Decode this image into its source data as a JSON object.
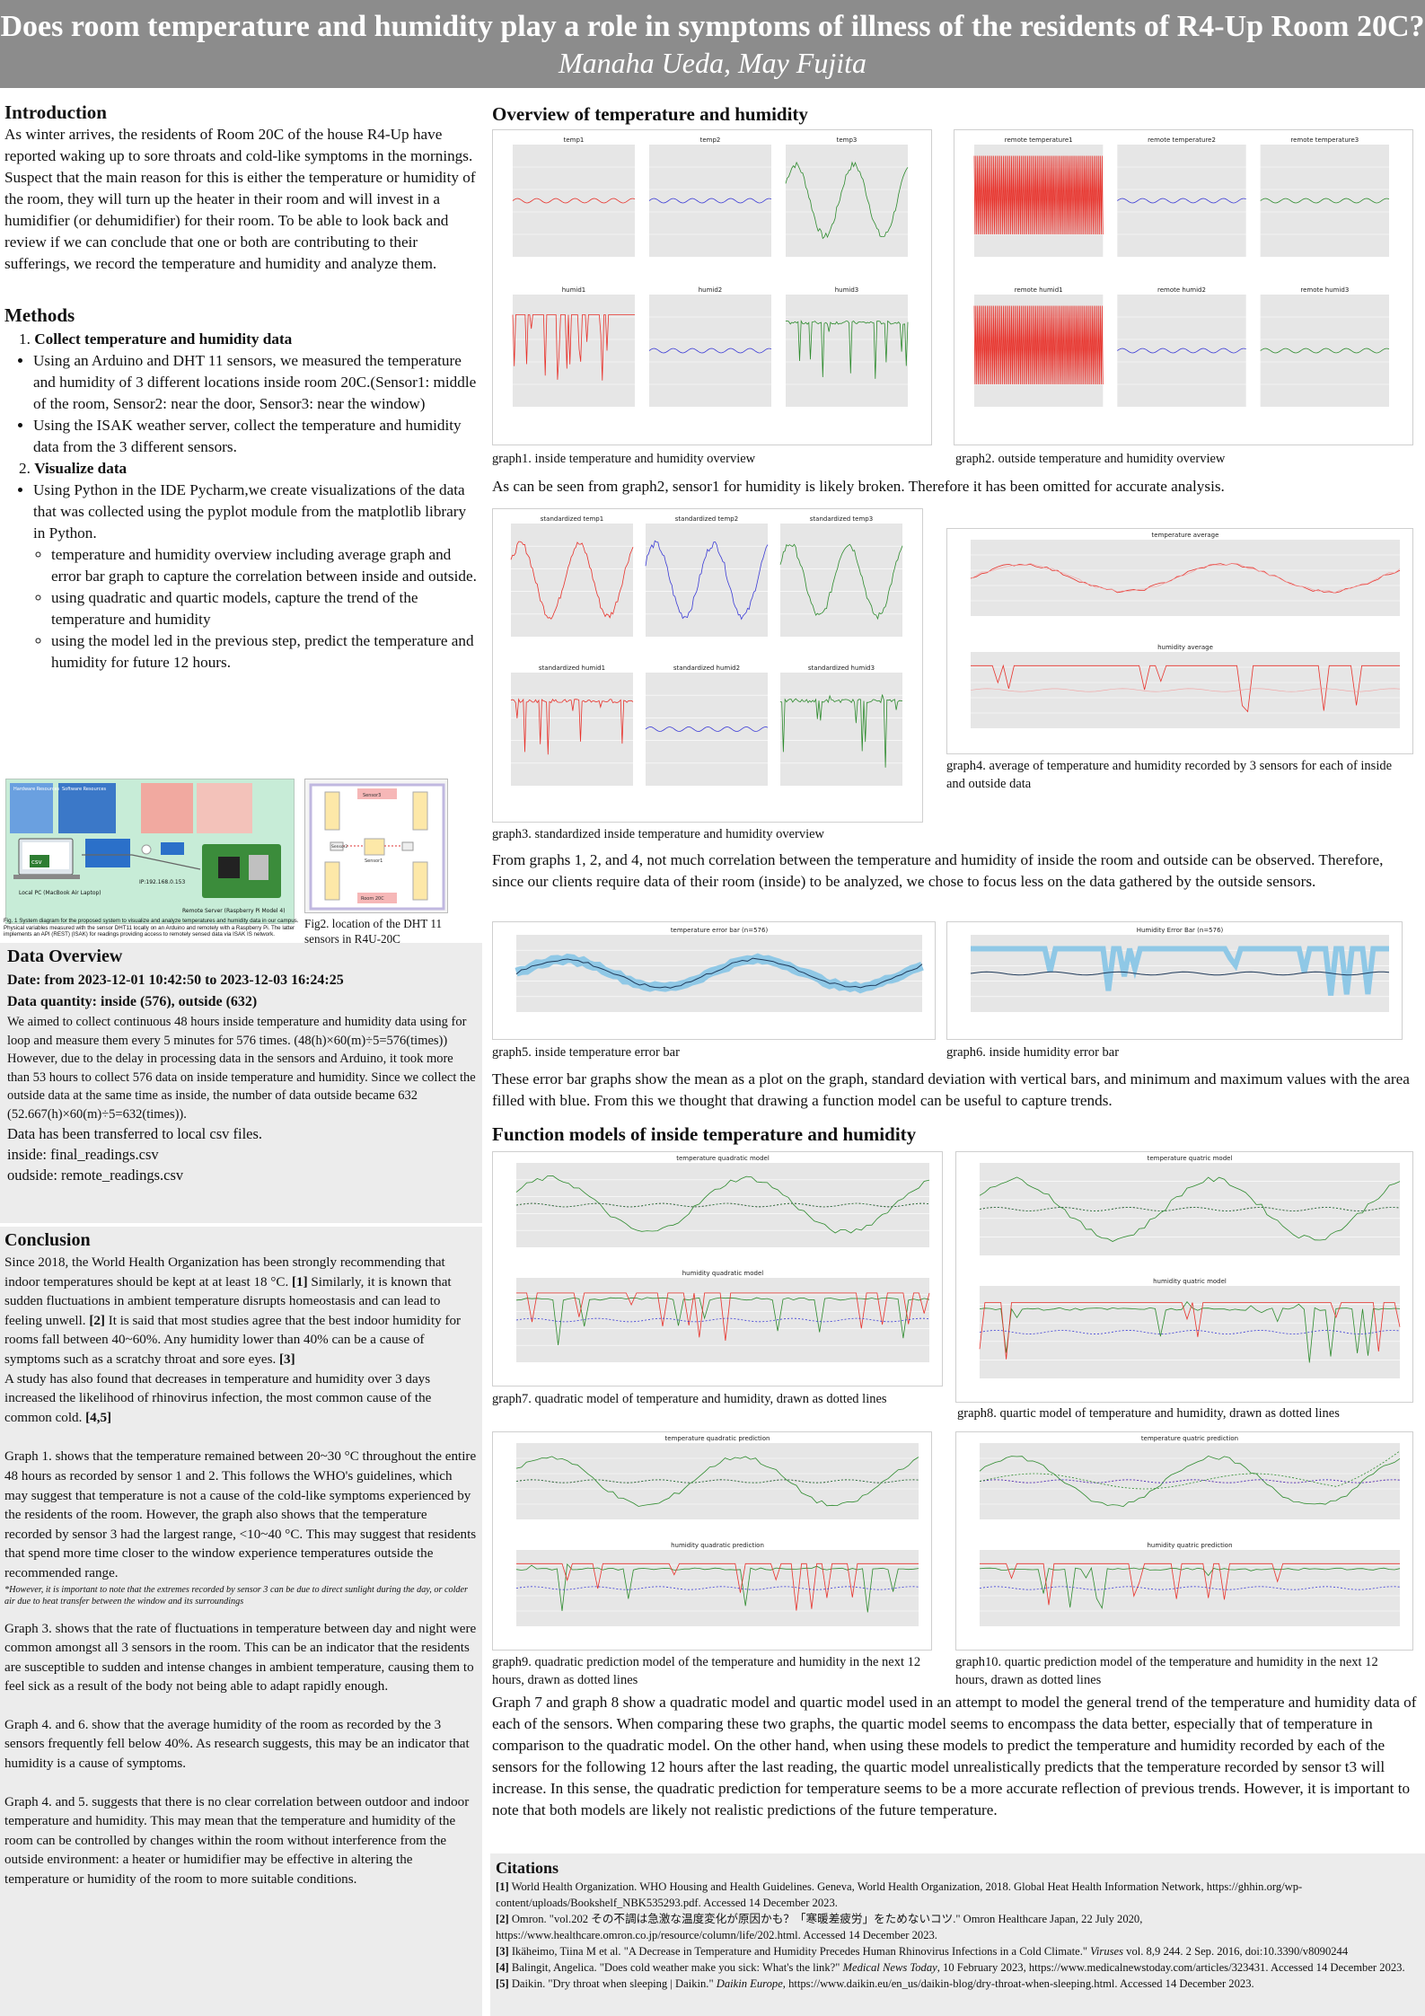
{
  "header": {
    "title": "Does room temperature and humidity play a role in symptoms of illness of the residents of R4-Up Room 20C?",
    "authors": "Manaha Ueda, May Fujita"
  },
  "intro": {
    "heading": "Introduction",
    "body": "As winter arrives, the residents of Room 20C of the house R4-Up have reported waking up to sore throats and cold-like symptoms in the mornings. Suspect that the main reason for this is either the temperature or humidity of the room, they will turn up the heater in their room and will invest in a humidifier (or dehumidifier) for their room. To be able to look back and review if we can conclude that one or both are contributing to their sufferings, we record the temperature and humidity and analyze them."
  },
  "methods": {
    "heading": "Methods",
    "step1": "Collect temperature and humidity data",
    "bullet1": "Using an Arduino and DHT 11 sensors,  we measured the temperature and humidity of 3 different locations inside room 20C.(Sensor1: middle of the room, Sensor2: near the door, Sensor3: near the window)",
    "bullet2": "Using the ISAK weather server, collect the temperature and humidity data from the 3 different sensors.",
    "step2": "Visualize data",
    "bullet3": "Using Python in the IDE Pycharm,we create visualizations of the data that was collected using the pyplot module from the matplotlib library in Python.",
    "sub1": "temperature and humidity overview including average graph and error bar graph to capture the correlation between inside and outside.",
    "sub2": "using quadratic and quartic models, capture the trend of the temperature and humidity",
    "sub3": "using the model led in the previous step, predict the temperature and humidity for future 12 hours.",
    "fig1_caption": "Fig. 1 System diagram for the proposed system to visualize and analyze temperatures and humidity data in our campus. Physical variables measured with the sensor DHT11 locally on an Arduino and remotely with a Raspberry Pi. The latter implements an API (REST) (ISAK) for readings providing access to remotely sensed data via ISAK IS network.",
    "fig2_caption": "Fig2. location of the DHT 11 sensors in R4U-20C",
    "diagram": {
      "hw_title": "Hardware Resources",
      "sw_title": "Software Resources",
      "local_label": "Local PC (MacBook Air Laptop)",
      "remote_label": "Remote Server (Raspberry Pi Model 4)",
      "csv_label": "csv",
      "ip_label": "IP:192.168.0.153",
      "room_label": "Room 20C",
      "s1": "Sensor1",
      "s2": "Sensor2",
      "s3": "Sensor3"
    }
  },
  "data_overview": {
    "heading": "Data Overview",
    "date": "Date: from 2023-12-01 10:42:50 to 2023-12-03 16:24:25",
    "quantity": "Data quantity: inside (576), outside (632)",
    "body": "We aimed to collect continuous 48 hours inside temperature and humidity data using for loop and measure them every 5 minutes for 576 times. (48(h)×60(m)÷5=576(times)) However, due to the delay in processing data in the sensors and Arduino, it took more than 53 hours to collect 576 data on inside temperature and humidity. Since we collect the outside data at the same time as inside, the number of data outside became 632 (52.667(h)×60(m)÷5=632(times)).",
    "line1": "Data has been transferred to local csv files.",
    "line2": "inside: final_readings.csv",
    "line3": "oudside: remote_readings.csv"
  },
  "conclusion": {
    "heading": "Conclusion",
    "p1a": "Since 2018, the World Health Organization has been strongly recommending that indoor temperatures should be kept at at least 18 °C. ",
    "p1b": "[1]",
    "p1c": " Similarly, it is known that sudden fluctuations in ambient temperature disrupts homeostasis and can lead to feeling unwell. ",
    "p1d": "[2]",
    "p1e": " It is said that most studies agree that the best indoor humidity for rooms fall between 40~60%. Any humidity lower than 40% can be a cause of symptoms such as a scratchy throat and sore eyes. ",
    "p1f": "[3]",
    "p2a": "A study has also found that decreases in temperature and humidity over 3 days increased the likelihood of rhinovirus infection, the most common cause of the common cold. ",
    "p2b": "[4,5]",
    "p3": "Graph 1. shows that the temperature remained between 20~30 °C throughout the entire 48 hours as recorded by sensor 1 and 2. This follows the WHO's guidelines, which may suggest that temperature is not a cause of the cold-like symptoms experienced by the residents of the room. However, the graph also shows that the temperature recorded by sensor 3 had the largest range, <10~40 °C. This may suggest that residents that spend more time closer to the window experience temperatures outside the recommended range.",
    "note": "*However, it is important to note that the extremes recorded by sensor 3 can be due to direct sunlight during the day, or colder air due to heat transfer between the window and its surroundings",
    "p4": "Graph 3. shows that the rate of fluctuations in temperature between day and night were common amongst all 3 sensors in the room. This can be an indicator that the residents are susceptible to sudden and intense changes in ambient temperature, causing them to feel sick as a result of the body not being able to adapt rapidly enough.",
    "p5": "Graph 4. and 6. show that the average humidity of the room as recorded by the 3 sensors frequently fell below 40%. As research suggests, this may be an indicator that humidity is a cause of symptoms.",
    "p6": "Graph 4. and 5. suggests that there is no clear correlation between outdoor and indoor temperature and humidity. This may mean that the temperature and humidity of the room can be controlled by changes within the room without interference from the outside environment: a heater or humidifier may be effective in altering the temperature or humidity of the room to more suitable conditions."
  },
  "overview": {
    "heading": "Overview of temperature and humidity",
    "graph1_caption": "graph1. inside temperature and humidity overview",
    "graph2_caption": "graph2. outside temperature and humidity overview",
    "text1": "As can be seen from graph2, sensor1 for humidity is likely broken. Therefore it has been omitted for accurate analysis.",
    "graph3_caption": "graph3. standardized inside temperature and humidity overview",
    "graph4_caption": "graph4. average of temperature and humidity recorded by 3 sensors for each of inside and outside data",
    "text2": "From graphs 1, 2, and 4, not much correlation between the temperature and humidity of inside the room and outside can be observed. Therefore, since our clients require data of their room (inside) to be analyzed, we chose to focus less on the data gathered by the outside sensors.",
    "graph5_caption": "graph5. inside temperature error bar",
    "graph6_caption": "graph6. inside humidity error bar",
    "text3": "These error bar graphs show the mean as a plot on the graph, standard deviation with vertical bars, and minimum and maximum values with the area filled with blue.  From this we thought that drawing a function model can be useful to capture trends."
  },
  "models": {
    "heading": "Function models of inside temperature and humidity",
    "graph7_caption": "graph7. quadratic model of temperature and humidity, drawn as dotted lines",
    "graph8_caption": "graph8. quartic model of temperature and humidity, drawn as dotted lines",
    "graph9_caption": "graph9. quadratic prediction model of the temperature and humidity in the next 12 hours, drawn as dotted lines",
    "graph10_caption": "graph10. quartic prediction model of the temperature and humidity in the next 12 hours, drawn as dotted lines",
    "text": "Graph 7 and graph 8 show a quadratic model and quartic model used in an attempt to model the general trend of the temperature and humidity data of each of the sensors. When comparing these two graphs, the quartic model seems to encompass the data better, especially that of temperature in comparison to the quadratic model. On the other hand, when using these models to predict the temperature and humidity recorded by each of the sensors for the following 12 hours after the last reading, the quartic model unrealistically predicts that the temperature recorded by sensor t3 will increase. In this sense, the quadratic prediction for temperature seems to be a more accurate reflection of previous trends. However, it is important to note that both models are likely not realistic predictions of the future temperature."
  },
  "citations": {
    "heading": "Citations",
    "c1_num": "[1]",
    "c1": " World Health Organization. WHO Housing and Health Guidelines. Geneva, World Health Organization, 2018. Global Heat Health Information Network, https://ghhin.org/wp-content/uploads/Bookshelf_NBK535293.pdf. Accessed 14 December 2023.",
    "c2_num": "[2]",
    "c2": " Omron. \"vol.202 その不調は急激な温度変化が原因かも？「寒暖差疲労」をためないコツ.\" Omron Healthcare Japan, 22 July 2020, https://www.healthcare.omron.co.jp/resource/column/life/202.html. Accessed 14 December 2023.",
    "c3_num": "[3]",
    "c3a": " Ikäheimo, Tiina M et al. \"A Decrease in Temperature and Humidity Precedes Human Rhinovirus Infections in a Cold Climate.\" ",
    "c3b": "Viruses",
    "c3c": " vol. 8,9 244. 2 Sep. 2016, doi:10.3390/v8090244",
    "c4_num": "[4]",
    "c4a": " Balingit, Angelica. \"Does cold weather make you sick: What's the link?\" ",
    "c4b": "Medical News Today",
    "c4c": ", 10 February 2023, https://www.medicalnewstoday.com/articles/323431. Accessed 14 December 2023.",
    "c5_num": "[5]",
    "c5a": " Daikin. \"Dry throat when sleeping | Daikin.\" ",
    "c5b": "Daikin Europe",
    "c5c": ", https://www.daikin.eu/en_us/daikin-blog/dry-throat-when-sleeping.html. Accessed 14 December 2023."
  },
  "charts": {
    "g1_titles": [
      "temp1",
      "temp2",
      "temp3",
      "humid1",
      "humid2",
      "humid3"
    ],
    "g2_titles": [
      "remote temperature1",
      "remote temperature2",
      "remote temperature3",
      "remote humid1",
      "remote humid2",
      "remote humid3"
    ],
    "g3_titles": [
      "standardized temp1",
      "standardized temp2",
      "standardized temp3",
      "standardized humid1",
      "standardized humid2",
      "standardized humid3"
    ],
    "g4_titles": [
      "temperature average",
      "humidity average"
    ],
    "g5_title": "temperature error bar (n=576)",
    "g6_title": "Humidity Error Bar (n=576)",
    "g7_titles": [
      "temperature quadratic model",
      "humidity quadratic model"
    ],
    "g8_titles": [
      "temperature quatric model",
      "humidity quatric model"
    ],
    "g9_titles": [
      "temperature quadratic prediction",
      "humidity quadratic prediction"
    ],
    "g10_titles": [
      "temperature quatric prediction",
      "humidity quatric prediction"
    ],
    "colors": {
      "sensor1": "#e8322b",
      "sensor2": "#3b3bd6",
      "sensor3": "#2e8b2e",
      "error_fill": "#8fc8e6",
      "plot_bg": "#e6e6e6"
    }
  }
}
